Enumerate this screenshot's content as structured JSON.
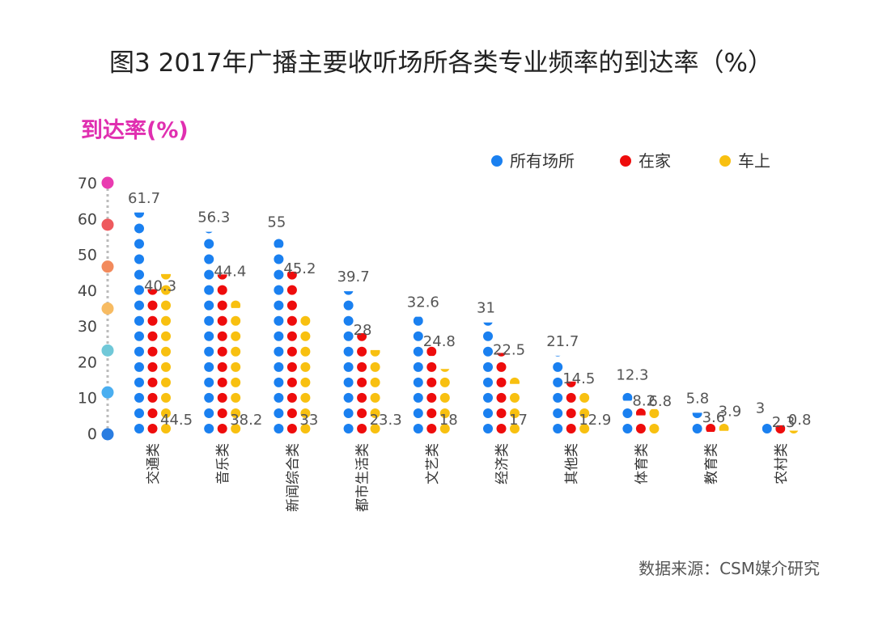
{
  "chart_data": {
    "type": "dot-column",
    "title": "图3 2017年广播主要收听场所各类专业频率的到达率（%）",
    "ylabel": "到达率(%)",
    "xlabel": "",
    "ylim": [
      0,
      70
    ],
    "yticks": [
      0,
      10,
      20,
      30,
      40,
      50,
      60,
      70
    ],
    "axis_dot_colors": [
      "#2a7de1",
      "#4aaef0",
      "#70c8d8",
      "#f7bb62",
      "#f28a5c",
      "#ee5a5e",
      "#e93bb0"
    ],
    "legend_placement": "top-right",
    "categories": [
      "交通类",
      "音乐类",
      "新闻综合类",
      "都市生活类",
      "文艺类",
      "经济类",
      "其他类",
      "体育类",
      "教育类",
      "农村类"
    ],
    "series": [
      {
        "name": "所有场所",
        "color": "#1a80f0",
        "values": [
          61.7,
          56.3,
          55,
          39.7,
          32.6,
          31,
          21.7,
          12.3,
          5.8,
          3
        ]
      },
      {
        "name": "在家",
        "color": "#ee0c0c",
        "values": [
          40.3,
          44.4,
          45.2,
          28,
          24.8,
          22.5,
          14.5,
          8.2,
          3.6,
          2.3
        ]
      },
      {
        "name": "车上",
        "color": "#f8c010",
        "values": [
          44.5,
          38.2,
          33,
          23.3,
          18,
          17,
          12.9,
          6.8,
          3.9,
          0.8
        ]
      }
    ],
    "source": "数据来源：CSM媒介研究"
  }
}
